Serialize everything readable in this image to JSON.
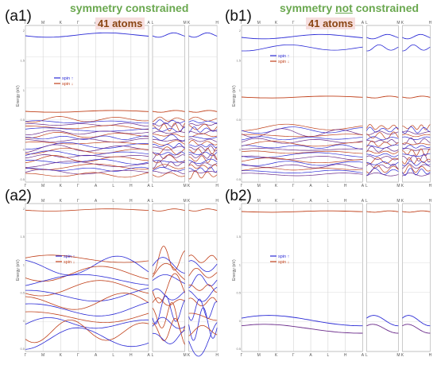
{
  "panel_labels": [
    "(a1)",
    "(b1)",
    "(a2)",
    "(b2)"
  ],
  "headers": {
    "left": {
      "title": "symmetry constrained",
      "atoms": "41 atoms"
    },
    "right": {
      "title_pre": "symmetry ",
      "title_ul": "not",
      "title_post": " constrained",
      "atoms": "41 atoms"
    }
  },
  "colors": {
    "spin_up": "#2b2bd6",
    "spin_down": "#c0401a",
    "header_green": "#6aa84f",
    "atoms_brown": "#8b4513"
  },
  "chart_data": [
    {
      "id": "a1",
      "type": "line",
      "ylabel": "Energy (eV)",
      "legend": [
        "spin ↑",
        "spin ↓"
      ],
      "legend_position": "left",
      "grid": true,
      "segments": [
        {
          "ticks": [
            "Γ",
            "M",
            "K",
            "Γ",
            "A",
            "L",
            "H",
            "A"
          ]
        },
        {
          "ticks": [
            "L",
            "M"
          ]
        },
        {
          "ticks": [
            "K",
            "H"
          ]
        }
      ],
      "bands_description": "flat spin-up band near top; spin-down band near middle; dense band manifold at bottom"
    },
    {
      "id": "b1",
      "type": "line",
      "ylabel": "Energy (eV)",
      "legend": [
        "spin ↑",
        "spin ↓"
      ],
      "legend_position": "left",
      "grid": true,
      "segments": [
        {
          "ticks": [
            "Γ",
            "M",
            "K",
            "Γ",
            "A",
            "L",
            "H",
            "A"
          ]
        },
        {
          "ticks": [
            "L",
            "M"
          ]
        },
        {
          "ticks": [
            "K",
            "H"
          ]
        }
      ]
    },
    {
      "id": "a2",
      "type": "line",
      "ylabel": "Energy (eV)",
      "legend": [
        "spin ↑",
        "spin ↓"
      ],
      "legend_position": "center",
      "grid": true,
      "segments": [
        {
          "ticks": [
            "Γ",
            "M",
            "K",
            "Γ",
            "A",
            "L",
            "H",
            "A"
          ]
        },
        {
          "ticks": [
            "L",
            "M"
          ]
        },
        {
          "ticks": [
            "K",
            "H"
          ]
        }
      ]
    },
    {
      "id": "b2",
      "type": "line",
      "ylabel": "Energy (eV)",
      "legend": [
        "spin ↑",
        "spin ↓"
      ],
      "legend_position": "center",
      "grid": true,
      "segments": [
        {
          "ticks": [
            "Γ",
            "M",
            "K",
            "Γ",
            "A",
            "L",
            "H",
            "A"
          ]
        },
        {
          "ticks": [
            "L",
            "M"
          ]
        },
        {
          "ticks": [
            "K",
            "H"
          ]
        }
      ]
    }
  ]
}
